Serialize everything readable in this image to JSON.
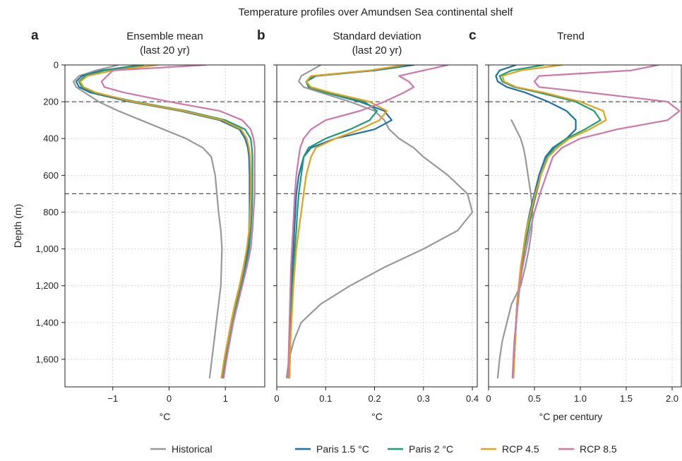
{
  "figure": {
    "title": "Temperature profiles over Amundsen Sea continental shelf",
    "ylabel": "Depth (m)"
  },
  "chart_data": {
    "type": "line",
    "title": "Temperature profiles over Amundsen Sea continental shelf",
    "ylabel": "Depth (m)",
    "y_inverted": true,
    "ylim": [
      1750,
      0
    ],
    "yticks": [
      0,
      200,
      400,
      600,
      800,
      1000,
      1200,
      1400,
      1600
    ],
    "ytick_labels": [
      "0",
      "200",
      "400",
      "600",
      "800",
      "1,000",
      "1,200",
      "1,400",
      "1,600"
    ],
    "reference_depths": [
      200,
      700
    ],
    "grid": "dotted",
    "legend_position": "bottom-center",
    "legend": [
      {
        "name": "Historical",
        "color": "#999999"
      },
      {
        "name": "Paris 1.5 °C",
        "color": "#1f70aa"
      },
      {
        "name": "Paris 2 °C",
        "color": "#1c9c78"
      },
      {
        "name": "RCP 4.5",
        "color": "#e0a31b"
      },
      {
        "name": "RCP 8.5",
        "color": "#cf78a8"
      }
    ],
    "depths": [
      0,
      30,
      60,
      90,
      120,
      150,
      200,
      250,
      300,
      350,
      400,
      450,
      500,
      600,
      700,
      800,
      900,
      1000,
      1100,
      1200,
      1300,
      1400,
      1500,
      1600,
      1700
    ],
    "panels": [
      {
        "letter": "a",
        "title": "Ensemble mean",
        "subtitle": "(last 20 yr)",
        "xlabel": "°C",
        "xlim": [
          -1.85,
          1.7
        ],
        "xticks": [
          -1,
          0,
          1
        ],
        "xtick_labels": [
          "−1",
          "0",
          "1"
        ],
        "series": [
          {
            "name": "Historical",
            "color": "#999999",
            "x": [
              -0.9,
              -1.3,
              -1.6,
              -1.7,
              -1.65,
              -1.5,
              -1.25,
              -0.9,
              -0.5,
              -0.1,
              0.3,
              0.6,
              0.75,
              0.82,
              0.85,
              0.88,
              0.92,
              0.94,
              0.93,
              0.92,
              0.88,
              0.84,
              0.8,
              0.76,
              0.72
            ]
          },
          {
            "name": "Paris 1.5 °C",
            "color": "#1f70aa",
            "x": [
              -0.5,
              -1.2,
              -1.55,
              -1.65,
              -1.6,
              -1.4,
              -0.7,
              0.2,
              0.9,
              1.25,
              1.35,
              1.4,
              1.42,
              1.43,
              1.43,
              1.43,
              1.42,
              1.4,
              1.35,
              1.28,
              1.2,
              1.13,
              1.07,
              1.01,
              0.96
            ]
          },
          {
            "name": "Paris 2 °C",
            "color": "#1c9c78",
            "x": [
              -0.45,
              -1.15,
              -1.5,
              -1.6,
              -1.55,
              -1.35,
              -0.6,
              0.3,
              1.0,
              1.35,
              1.45,
              1.47,
              1.48,
              1.48,
              1.48,
              1.47,
              1.45,
              1.42,
              1.36,
              1.28,
              1.2,
              1.13,
              1.07,
              1.0,
              0.95
            ]
          },
          {
            "name": "RCP 4.5",
            "color": "#e0a31b",
            "x": [
              -0.2,
              -1.0,
              -1.45,
              -1.58,
              -1.52,
              -1.3,
              -0.65,
              0.25,
              0.95,
              1.28,
              1.38,
              1.42,
              1.44,
              1.45,
              1.45,
              1.44,
              1.42,
              1.38,
              1.32,
              1.25,
              1.17,
              1.1,
              1.04,
              0.98,
              0.93
            ]
          },
          {
            "name": "RCP 8.5",
            "color": "#cf78a8",
            "x": [
              0.65,
              -1.0,
              -1.1,
              -1.2,
              -1.15,
              -0.8,
              0.0,
              0.9,
              1.3,
              1.45,
              1.5,
              1.52,
              1.52,
              1.52,
              1.52,
              1.5,
              1.48,
              1.45,
              1.38,
              1.3,
              1.22,
              1.14,
              1.08,
              1.02,
              0.97
            ]
          }
        ]
      },
      {
        "letter": "b",
        "title": "Standard deviation",
        "subtitle": "(last 20 yr)",
        "xlabel": "°C",
        "xlim": [
          0,
          0.41
        ],
        "xticks": [
          0,
          0.1,
          0.2,
          0.3,
          0.4
        ],
        "xtick_labels": [
          "0",
          "0.1",
          "0.2",
          "0.3",
          "0.4"
        ],
        "series": [
          {
            "name": "Historical",
            "color": "#999999",
            "x": [
              0.09,
              0.07,
              0.05,
              0.045,
              0.055,
              0.09,
              0.15,
              0.2,
              0.22,
              0.23,
              0.25,
              0.28,
              0.3,
              0.35,
              0.39,
              0.4,
              0.37,
              0.3,
              0.22,
              0.15,
              0.09,
              0.05,
              0.035,
              0.025,
              0.02
            ]
          },
          {
            "name": "Paris 1.5 °C",
            "color": "#1f70aa",
            "x": [
              0.28,
              0.2,
              0.08,
              0.06,
              0.065,
              0.1,
              0.17,
              0.22,
              0.235,
              0.2,
              0.12,
              0.07,
              0.055,
              0.045,
              0.04,
              0.038,
              0.036,
              0.034,
              0.032,
              0.03,
              0.029,
              0.028,
              0.027,
              0.026,
              0.025
            ]
          },
          {
            "name": "Paris 2 °C",
            "color": "#1c9c78",
            "x": [
              0.27,
              0.19,
              0.075,
              0.06,
              0.065,
              0.1,
              0.18,
              0.205,
              0.19,
              0.15,
              0.1,
              0.065,
              0.055,
              0.05,
              0.045,
              0.042,
              0.04,
              0.037,
              0.034,
              0.032,
              0.03,
              0.029,
              0.028,
              0.027,
              0.026
            ]
          },
          {
            "name": "RCP 4.5",
            "color": "#e0a31b",
            "x": [
              0.26,
              0.19,
              0.07,
              0.06,
              0.07,
              0.11,
              0.19,
              0.225,
              0.21,
              0.17,
              0.12,
              0.08,
              0.07,
              0.06,
              0.055,
              0.05,
              0.045,
              0.04,
              0.037,
              0.034,
              0.032,
              0.03,
              0.028,
              0.027,
              0.026
            ]
          },
          {
            "name": "RCP 8.5",
            "color": "#cf78a8",
            "x": [
              0.35,
              0.3,
              0.25,
              0.27,
              0.28,
              0.26,
              0.22,
              0.17,
              0.1,
              0.07,
              0.055,
              0.048,
              0.045,
              0.04,
              0.037,
              0.035,
              0.033,
              0.031,
              0.029,
              0.028,
              0.027,
              0.026,
              0.025,
              0.024,
              0.023
            ]
          }
        ]
      },
      {
        "letter": "c",
        "title": "Trend",
        "subtitle": "",
        "xlabel": "°C per century",
        "xlim": [
          0,
          2.1
        ],
        "xticks": [
          0,
          0.5,
          1.0,
          1.5,
          2.0
        ],
        "xtick_labels": [
          "0",
          "0.5",
          "1.0",
          "1.5",
          "2.0"
        ],
        "series": [
          {
            "name": "Historical",
            "color": "#999999",
            "depths": [
              300,
              350,
              400,
              450,
              500,
              600,
              700,
              800,
              900,
              1000,
              1100,
              1200,
              1300,
              1400,
              1500,
              1600,
              1700
            ],
            "x": [
              0.25,
              0.3,
              0.35,
              0.38,
              0.4,
              0.43,
              0.46,
              0.48,
              0.47,
              0.44,
              0.4,
              0.35,
              0.25,
              0.2,
              0.15,
              0.12,
              0.1
            ]
          },
          {
            "name": "Paris 1.5 °C",
            "color": "#1f70aa",
            "x": [
              0.3,
              0.12,
              0.08,
              0.1,
              0.2,
              0.4,
              0.65,
              0.85,
              0.95,
              0.95,
              0.85,
              0.7,
              0.62,
              0.55,
              0.5,
              0.45,
              0.41,
              0.38,
              0.35,
              0.33,
              0.31,
              0.3,
              0.29,
              0.28,
              0.27
            ]
          },
          {
            "name": "Paris 2 °C",
            "color": "#1c9c78",
            "x": [
              0.6,
              0.25,
              0.12,
              0.15,
              0.28,
              0.55,
              0.95,
              1.15,
              1.22,
              1.05,
              0.85,
              0.72,
              0.64,
              0.57,
              0.52,
              0.47,
              0.43,
              0.39,
              0.36,
              0.33,
              0.31,
              0.3,
              0.29,
              0.28,
              0.27
            ]
          },
          {
            "name": "RCP 4.5",
            "color": "#e0a31b",
            "x": [
              0.8,
              0.35,
              0.15,
              0.17,
              0.3,
              0.6,
              1.0,
              1.25,
              1.28,
              1.1,
              0.88,
              0.75,
              0.65,
              0.57,
              0.51,
              0.46,
              0.41,
              0.38,
              0.35,
              0.33,
              0.31,
              0.3,
              0.29,
              0.28,
              0.27
            ]
          },
          {
            "name": "RCP 8.5",
            "color": "#cf78a8",
            "x": [
              1.85,
              1.55,
              0.55,
              0.5,
              0.55,
              1.1,
              1.95,
              2.08,
              1.95,
              1.4,
              1.0,
              0.8,
              0.7,
              0.63,
              0.56,
              0.5,
              0.45,
              0.41,
              0.37,
              0.34,
              0.32,
              0.3,
              0.28,
              0.27,
              0.26
            ]
          }
        ]
      }
    ]
  }
}
